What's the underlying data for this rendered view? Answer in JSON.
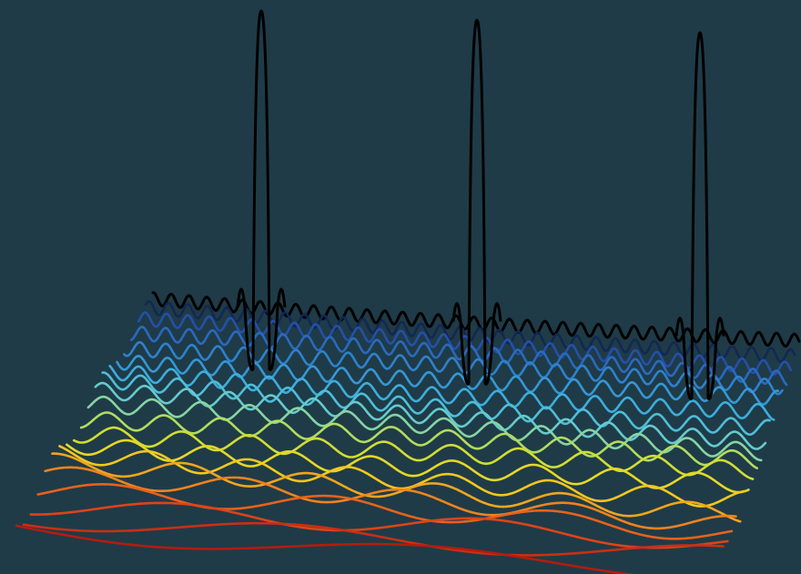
{
  "figure": {
    "background": "#1f3b47",
    "traces": {
      "count": 20,
      "color_stops": [
        "#b51b10",
        "#e0451a",
        "#f08a1e",
        "#f2d31e",
        "#c8e03a",
        "#6fd0c8",
        "#3fb4e0",
        "#2f86cf",
        "#2654b0",
        "#000000"
      ],
      "back_trace_color": "#000000",
      "back_trace_peaks": 3
    }
  }
}
